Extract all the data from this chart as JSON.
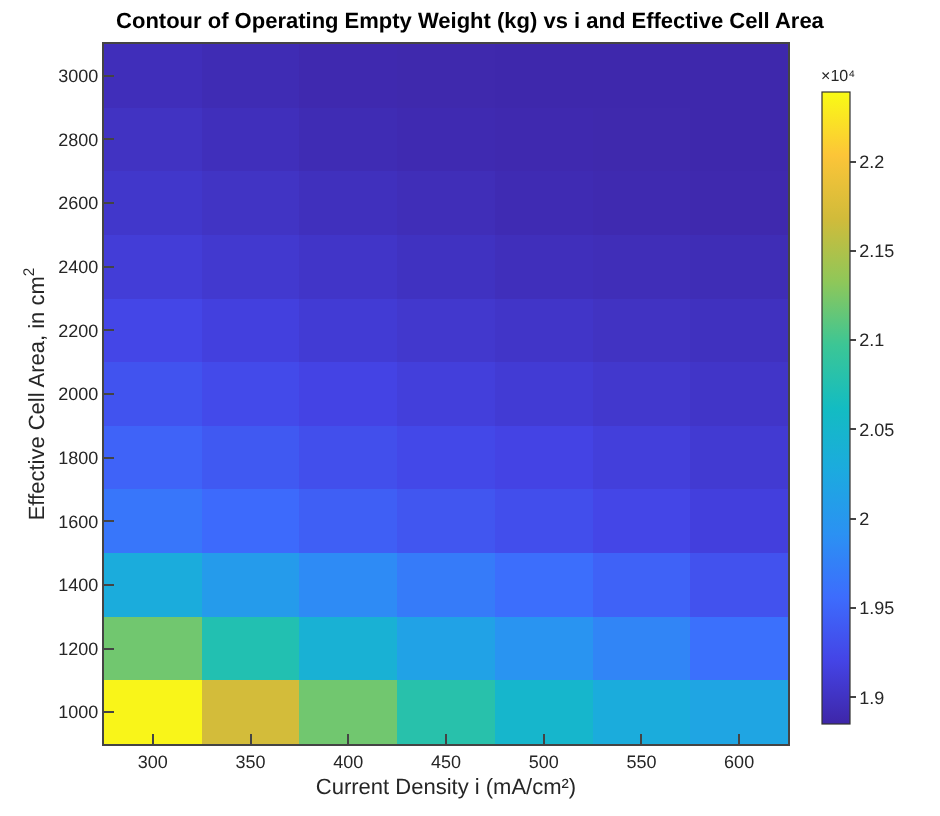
{
  "chart_data": {
    "type": "heatmap",
    "title": "Contour of Operating Empty Weight (kg) vs i and Effective Cell Area",
    "xlabel": "Current Density i (mA/cm²)",
    "ylabel": "Effective Cell Area, in cm$^{2}$",
    "clabel": "×10⁴",
    "categories": [
      "300",
      "350",
      "400",
      "450",
      "500",
      "550",
      "600"
    ],
    "y_categories": [
      "3000",
      "2800",
      "2600",
      "2400",
      "2200",
      "2000",
      "1800",
      "1600",
      "1400",
      "1200",
      "1000"
    ],
    "cells": [
      [
        1.895,
        1.892,
        1.889,
        1.888,
        1.8875,
        1.887,
        1.887
      ],
      [
        1.9,
        1.896,
        1.892,
        1.89,
        1.889,
        1.888,
        1.8875
      ],
      [
        1.905,
        1.901,
        1.897,
        1.894,
        1.891,
        1.8895,
        1.8885
      ],
      [
        1.912,
        1.907,
        1.903,
        1.899,
        1.896,
        1.894,
        1.893
      ],
      [
        1.922,
        1.916,
        1.91,
        1.906,
        1.903,
        1.9,
        1.898
      ],
      [
        1.934,
        1.926,
        1.919,
        1.914,
        1.91,
        1.906,
        1.903
      ],
      [
        1.948,
        1.939,
        1.93,
        1.924,
        1.919,
        1.914,
        1.909
      ],
      [
        1.965,
        1.954,
        1.944,
        1.936,
        1.929,
        1.922,
        1.915
      ],
      [
        2.03,
        2.005,
        1.985,
        1.97,
        1.958,
        1.947,
        1.933
      ],
      [
        2.12,
        2.075,
        2.04,
        2.015,
        1.995,
        1.98,
        1.96
      ],
      [
        2.235,
        2.17,
        2.12,
        2.08,
        2.05,
        2.03,
        2.02
      ]
    ],
    "clim": [
      1.885,
      2.239
    ],
    "cticks": [
      1.9,
      1.95,
      2,
      2.05,
      2.1,
      2.15,
      2.2
    ]
  }
}
